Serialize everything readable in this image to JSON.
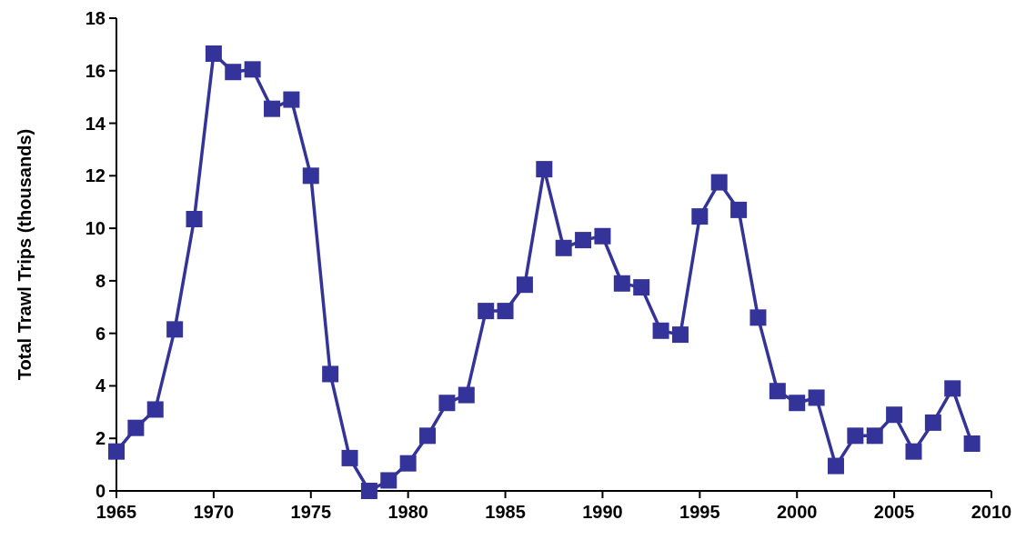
{
  "chart_data": {
    "type": "line",
    "ylabel": "Total Trawl Trips (thousands)",
    "x": [
      1965,
      1966,
      1967,
      1968,
      1969,
      1970,
      1971,
      1972,
      1973,
      1974,
      1975,
      1976,
      1977,
      1978,
      1979,
      1980,
      1981,
      1982,
      1983,
      1984,
      1985,
      1986,
      1987,
      1988,
      1989,
      1990,
      1991,
      1992,
      1993,
      1994,
      1995,
      1996,
      1997,
      1998,
      1999,
      2000,
      2001,
      2002,
      2003,
      2004,
      2005,
      2006,
      2007,
      2008,
      2009
    ],
    "series": [
      {
        "color": "#333399",
        "values": [
          1.5,
          2.4,
          3.1,
          6.15,
          10.35,
          16.65,
          15.95,
          16.05,
          14.55,
          14.9,
          12.0,
          4.45,
          1.25,
          0.0,
          0.4,
          1.05,
          2.1,
          3.35,
          3.65,
          6.85,
          6.85,
          7.85,
          12.25,
          9.25,
          9.55,
          9.7,
          7.9,
          7.75,
          6.1,
          5.95,
          10.45,
          11.75,
          10.7,
          6.6,
          3.8,
          3.35,
          3.55,
          0.95,
          2.1,
          2.1,
          2.9,
          1.5,
          2.6,
          3.9,
          1.8
        ]
      }
    ],
    "xlim": [
      1965,
      2010
    ],
    "xticks": [
      1965,
      1970,
      1975,
      1980,
      1985,
      1990,
      1995,
      2000,
      2005,
      2010
    ],
    "ylim": [
      0,
      18
    ],
    "yticks": [
      0,
      2,
      4,
      6,
      8,
      10,
      12,
      14,
      16,
      18
    ],
    "grid": false,
    "legend": false,
    "marker": "square",
    "line_style": "solid"
  }
}
